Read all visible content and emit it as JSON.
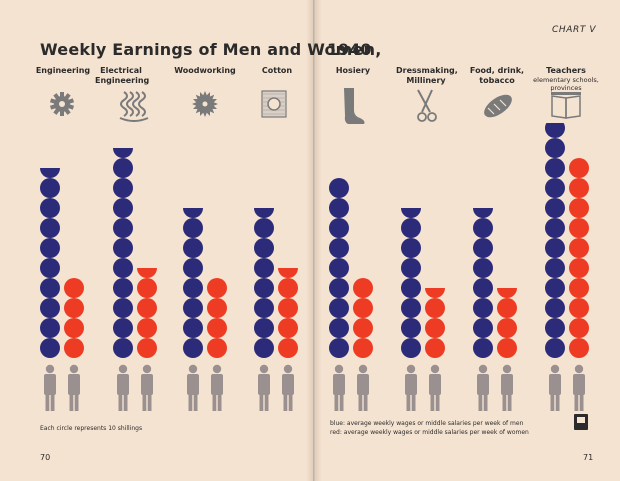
{
  "chart_label": "CHART V",
  "title_left": "Weekly Earnings of Men and Women,",
  "title_right": "1940",
  "note": "Each circle represents 10 shillings",
  "legend": {
    "blue": "blue: average weekly wages or middle salaries per week of men",
    "red": "red: average weekly wages or middle salaries per week of women"
  },
  "page_numbers": {
    "left": "70",
    "right": "71"
  },
  "colors": {
    "men": "#2b2b7a",
    "women": "#ee3b24",
    "figure": "#9a9090",
    "icon": "#7a7a7a"
  },
  "chart_data": {
    "type": "isotype",
    "title": "Weekly Earnings of Men and Women, 1940",
    "unit": "Each circle represents 10 shillings",
    "unit_value": 10,
    "categories": [
      "Engineering",
      "Electrical Engineering",
      "Woodworking",
      "Cotton",
      "Hosiery",
      "Dressmaking, Millinery",
      "Food, drink, tobacco",
      "Teachers"
    ],
    "category_subtitles": [
      "",
      "",
      "",
      "",
      "",
      "",
      "",
      "elementary schools, provinces"
    ],
    "category_icons": [
      "gear-icon",
      "wires-icon",
      "saw-blade-icon",
      "cotton-cloth-icon",
      "stocking-icon",
      "scissors-icon",
      "bread-icon",
      "book-icon"
    ],
    "series": [
      {
        "name": "men",
        "circles": [
          9.5,
          10.5,
          7.5,
          7.5,
          9,
          7.5,
          7.5,
          11.75
        ]
      },
      {
        "name": "women",
        "circles": [
          4,
          4.5,
          4,
          4.5,
          4,
          3.5,
          3.5,
          10
        ]
      }
    ]
  }
}
